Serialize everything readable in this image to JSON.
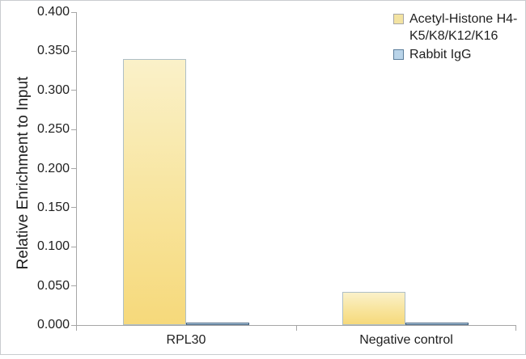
{
  "chart_data": {
    "type": "bar",
    "title": "",
    "xlabel": "",
    "ylabel": "Relative Enrichment to Input",
    "ylim": [
      0.0,
      0.4
    ],
    "ytick_step": 0.05,
    "yticks": [
      "0.000",
      "0.050",
      "0.100",
      "0.150",
      "0.200",
      "0.250",
      "0.300",
      "0.350",
      "0.400"
    ],
    "grid": false,
    "legend_position": "top-right",
    "plot_background": "#FFFFFF",
    "categories": [
      "RPL30",
      "Negative control"
    ],
    "series": [
      {
        "name": "Acetyl-Histone H4-K5/K8/K12/K16",
        "values": [
          0.34,
          0.042
        ],
        "fill_top": "#FAF1C9",
        "fill_bottom": "#F6D97B",
        "border": "#AEBFC7",
        "legend_fill": "#F3E3A2",
        "legend_border": "#A6A6A6"
      },
      {
        "name": "Rabbit IgG",
        "values": [
          0.002,
          0.002
        ],
        "fill": "#B9D4E9",
        "border": "#46637F",
        "legend_fill": "#B9D4E9",
        "legend_border": "#5B7E9B"
      }
    ]
  },
  "colors": {
    "axis_line": "#A6A6A6",
    "text": "#1F1F1F",
    "frame": "#C9CCCF"
  }
}
